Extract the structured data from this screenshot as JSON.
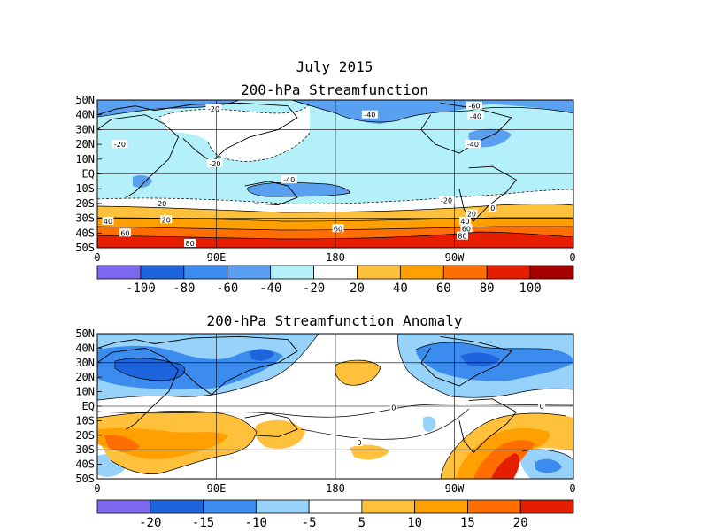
{
  "figure": {
    "title": "July 2015"
  },
  "palette": {
    "purple": "#7b68ee",
    "blue_dark": "#1e64dc",
    "blue": "#3c8cf0",
    "blue_mid": "#5aa0f0",
    "blue_light": "#96d2fa",
    "cyan_light": "#b4f0fa",
    "white": "#ffffff",
    "yellow_orange": "#ffc03c",
    "orange": "#ffa000",
    "orange_dark": "#ff6e00",
    "red": "#e61e00",
    "dark_red": "#a50000"
  },
  "chart_data": [
    {
      "type": "heatmap",
      "subtitle": "200-hPa Streamfunction",
      "x_ticks": [
        "0",
        "90E",
        "180",
        "90W",
        "0"
      ],
      "y_ticks": [
        "50N",
        "40N",
        "30N",
        "20N",
        "10N",
        "EQ",
        "10S",
        "20S",
        "30S",
        "40S",
        "50S"
      ],
      "xlim": [
        0,
        360
      ],
      "ylim": [
        -50,
        50
      ],
      "colorbar": {
        "labels": [
          "-100",
          "-80",
          "-60",
          "-40",
          "-20",
          "20",
          "40",
          "60",
          "80",
          "100"
        ],
        "colors": [
          "purple",
          "blue_dark",
          "blue",
          "blue_mid",
          "cyan_light",
          "white",
          "yellow_orange",
          "orange",
          "orange_dark",
          "red",
          "dark_red"
        ]
      },
      "contour_labels": [
        {
          "text": "-20",
          "lon": 88,
          "lat": 44
        },
        {
          "text": "-40",
          "lon": 206,
          "lat": 40
        },
        {
          "text": "-60",
          "lon": 285,
          "lat": 46
        },
        {
          "text": "-40",
          "lon": 286,
          "lat": 39
        },
        {
          "text": "-20",
          "lon": 17,
          "lat": 20
        },
        {
          "text": "-20",
          "lon": 89,
          "lat": 7
        },
        {
          "text": "-40",
          "lon": 284,
          "lat": 20
        },
        {
          "text": "-40",
          "lon": 145,
          "lat": -4
        },
        {
          "text": "-20",
          "lon": 48,
          "lat": -20
        },
        {
          "text": "-20",
          "lon": 264,
          "lat": -18
        },
        {
          "text": "0",
          "lon": 299,
          "lat": -23
        },
        {
          "text": "20",
          "lon": 52,
          "lat": -31
        },
        {
          "text": "20",
          "lon": 283,
          "lat": -27
        },
        {
          "text": "40",
          "lon": 8,
          "lat": -32
        },
        {
          "text": "40",
          "lon": 278,
          "lat": -32
        },
        {
          "text": "60",
          "lon": 21,
          "lat": -40
        },
        {
          "text": "60",
          "lon": 182,
          "lat": -37
        },
        {
          "text": "60",
          "lon": 279,
          "lat": -37
        },
        {
          "text": "80",
          "lon": 70,
          "lat": -47
        },
        {
          "text": "80",
          "lon": 276,
          "lat": -42
        }
      ]
    },
    {
      "type": "heatmap",
      "subtitle": "200-hPa Streamfunction Anomaly",
      "x_ticks": [
        "0",
        "90E",
        "180",
        "90W",
        "0"
      ],
      "y_ticks": [
        "50N",
        "40N",
        "30N",
        "20N",
        "10N",
        "EQ",
        "10S",
        "20S",
        "30S",
        "40S",
        "50S"
      ],
      "xlim": [
        0,
        360
      ],
      "ylim": [
        -50,
        50
      ],
      "colorbar": {
        "labels": [
          "-20",
          "-15",
          "-10",
          "-5",
          "5",
          "10",
          "15",
          "20"
        ],
        "colors": [
          "purple",
          "blue_dark",
          "blue",
          "blue_light",
          "white",
          "yellow_orange",
          "orange",
          "orange_dark",
          "red"
        ]
      },
      "contour_labels": [
        {
          "text": "0",
          "lon": 224,
          "lat": -1
        },
        {
          "text": "0",
          "lon": 336,
          "lat": 0
        },
        {
          "text": "0",
          "lon": 198,
          "lat": -25
        }
      ]
    }
  ]
}
